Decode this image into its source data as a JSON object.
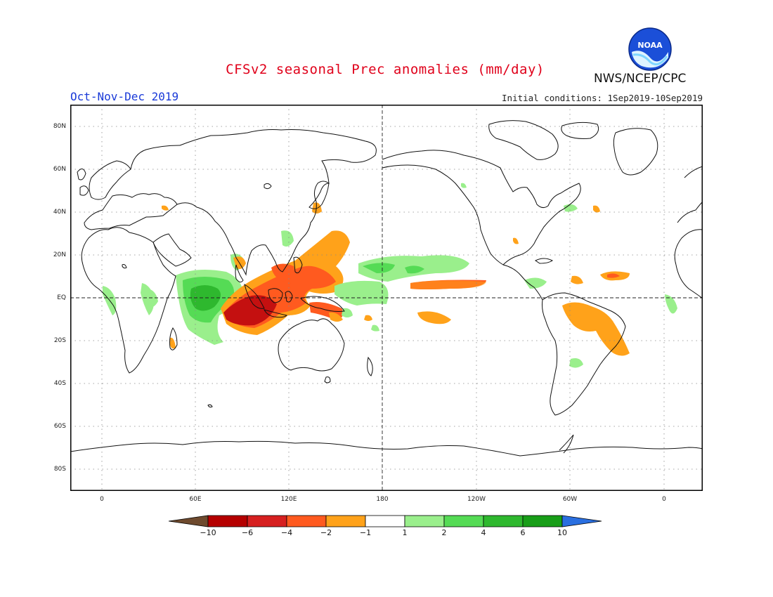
{
  "title": "CFSv2 seasonal Prec anomalies (mm/day)",
  "season": "Oct-Nov-Dec 2019",
  "initial_conditions": "Initial conditions: 1Sep2019-10Sep2019",
  "agency": "NWS/NCEP/CPC",
  "logo_text": "NOAA",
  "lat_labels": [
    "80N",
    "60N",
    "40N",
    "20N",
    "EQ",
    "20S",
    "40S",
    "60S",
    "80S"
  ],
  "lon_labels": [
    "0",
    "60E",
    "120E",
    "180",
    "120W",
    "60W",
    "0"
  ],
  "legend": {
    "labels": [
      "-10",
      "-6",
      "-4",
      "-2",
      "-1",
      "1",
      "2",
      "4",
      "6",
      "10"
    ],
    "colors": [
      "#6e4a2e",
      "#b50000",
      "#d62020",
      "#ff5a1f",
      "#ffa21a",
      "#ffffff",
      "#9aef8c",
      "#55db55",
      "#2eb82e",
      "#189e18",
      "#2a6fe0"
    ]
  },
  "colors": {
    "dry_strong": "#c41010",
    "dry_mid": "#f0441a",
    "dry_weak": "#ffa21a",
    "wet_weak": "#9aef8c",
    "wet_mid": "#55db55",
    "wet_strong": "#2eb82e"
  }
}
